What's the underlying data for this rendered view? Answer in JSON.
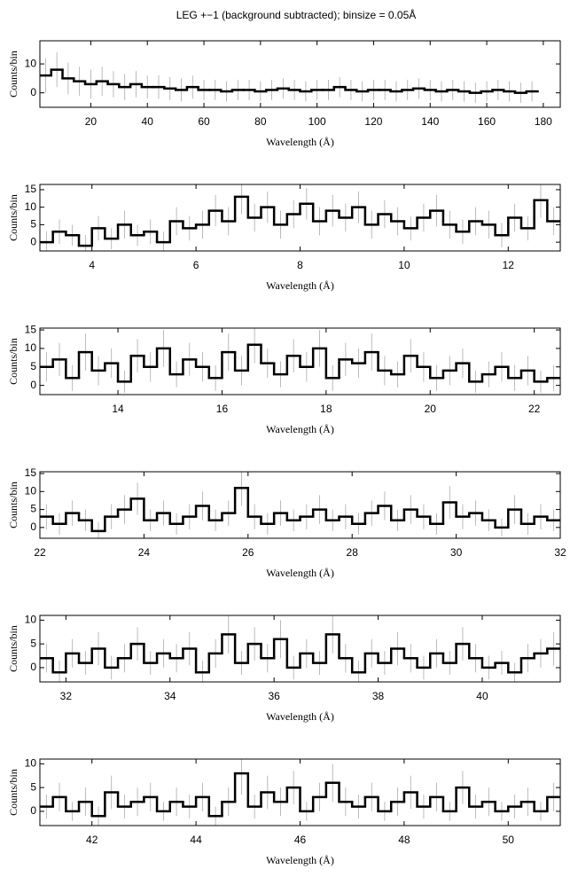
{
  "title": "LEG +−1 (background subtracted); binsize = 0.05Å",
  "chart_data": [
    {
      "type": "histogram",
      "xlabel": "Wavelength (Å)",
      "ylabel": "Counts/bin",
      "color": "#000000",
      "error_color": "#aaaaaa",
      "xlim": [
        2,
        186
      ],
      "ylim": [
        -5,
        18
      ],
      "xticks": [
        20,
        40,
        60,
        80,
        100,
        120,
        140,
        160,
        180
      ],
      "yticks": [
        0,
        10
      ],
      "bins": [
        2,
        6,
        10,
        14,
        18,
        22,
        26,
        30,
        34,
        38,
        42,
        46,
        50,
        54,
        58,
        62,
        66,
        70,
        74,
        78,
        82,
        86,
        90,
        94,
        98,
        102,
        106,
        110,
        114,
        118,
        122,
        126,
        130,
        134,
        138,
        142,
        146,
        150,
        154,
        158,
        162,
        166,
        170,
        174,
        178
      ],
      "values": [
        6,
        8,
        5,
        4,
        3,
        4,
        3,
        2,
        3,
        2,
        2,
        1.5,
        1,
        2,
        1,
        1,
        0.5,
        1,
        1,
        0.5,
        1,
        1.5,
        1,
        0.5,
        1,
        1,
        2,
        1,
        0.5,
        1,
        1,
        0.5,
        1,
        1.5,
        1,
        0.5,
        1,
        0.5,
        0,
        0.5,
        1,
        0.5,
        0,
        0.5
      ],
      "errors": [
        6,
        6,
        5.5,
        5,
        5,
        5,
        4.5,
        4.5,
        4.5,
        4,
        4,
        4,
        4,
        4,
        3.5,
        3.5,
        3.5,
        3.5,
        3.5,
        3.5,
        3.5,
        3.5,
        3.5,
        3.5,
        3.5,
        3.5,
        3.5,
        3.5,
        3.5,
        3.5,
        3.5,
        3.5,
        3.5,
        3.5,
        3.5,
        3.5,
        3.5,
        3.5,
        3.5,
        3.5,
        3.5,
        3.5,
        3.5,
        3.5
      ]
    },
    {
      "type": "histogram",
      "xlabel": "Wavelength (Å)",
      "ylabel": "Counts/bin",
      "color": "#000000",
      "error_color": "#aaaaaa",
      "xlim": [
        3,
        13
      ],
      "ylim": [
        -2.5,
        16.5
      ],
      "xticks": [
        4,
        6,
        8,
        10,
        12
      ],
      "yticks": [
        0,
        5,
        10,
        15
      ],
      "bins": [
        3,
        3.25,
        3.5,
        3.75,
        4,
        4.25,
        4.5,
        4.75,
        5,
        5.25,
        5.5,
        5.75,
        6,
        6.25,
        6.5,
        6.75,
        7,
        7.25,
        7.5,
        7.75,
        8,
        8.25,
        8.5,
        8.75,
        9,
        9.25,
        9.5,
        9.75,
        10,
        10.25,
        10.5,
        10.75,
        11,
        11.25,
        11.5,
        11.75,
        12,
        12.25,
        12.5,
        12.75,
        13
      ],
      "values": [
        0,
        3,
        2,
        -1,
        4,
        1,
        5,
        2,
        3,
        0,
        6,
        4,
        5,
        9,
        6,
        13,
        7,
        10,
        5,
        8,
        11,
        6,
        9,
        7,
        10,
        5,
        8,
        6,
        4,
        7,
        9,
        5,
        3,
        6,
        5,
        2,
        7,
        4,
        12,
        6
      ],
      "errors": [
        3,
        3.5,
        3,
        3,
        3.5,
        3,
        4,
        3,
        3.5,
        3,
        4,
        3.5,
        4,
        4.5,
        4,
        5,
        4,
        4.5,
        4,
        4,
        4.5,
        4,
        4.5,
        4,
        4.5,
        4,
        4,
        4,
        3.5,
        4,
        4.5,
        4,
        3.5,
        4,
        4,
        3.5,
        4,
        3.5,
        5,
        4
      ]
    },
    {
      "type": "histogram",
      "xlabel": "Wavelength (Å)",
      "ylabel": "Counts/bin",
      "color": "#000000",
      "error_color": "#aaaaaa",
      "xlim": [
        12.5,
        22.5
      ],
      "ylim": [
        -2.5,
        15.5
      ],
      "xticks": [
        14,
        16,
        18,
        20,
        22
      ],
      "yticks": [
        0,
        5,
        10,
        15
      ],
      "bins": [
        12.5,
        12.75,
        13,
        13.25,
        13.5,
        13.75,
        14,
        14.25,
        14.5,
        14.75,
        15,
        15.25,
        15.5,
        15.75,
        16,
        16.25,
        16.5,
        16.75,
        17,
        17.25,
        17.5,
        17.75,
        18,
        18.25,
        18.5,
        18.75,
        19,
        19.25,
        19.5,
        19.75,
        20,
        20.25,
        20.5,
        20.75,
        21,
        21.25,
        21.5,
        21.75,
        22,
        22.25,
        22.5
      ],
      "values": [
        5,
        7,
        2,
        9,
        4,
        6,
        1,
        8,
        5,
        10,
        3,
        7,
        5,
        2,
        9,
        4,
        11,
        6,
        3,
        8,
        5,
        10,
        2,
        7,
        6,
        9,
        4,
        3,
        8,
        5,
        2,
        4,
        6,
        1,
        3,
        5,
        2,
        4,
        1,
        2
      ],
      "errors": [
        4,
        4.5,
        3.5,
        5,
        4,
        4,
        3,
        4.5,
        4,
        5,
        3.5,
        4.5,
        4,
        3.5,
        5,
        4,
        5,
        4,
        3.5,
        4.5,
        4,
        5,
        3.5,
        4.5,
        4,
        5,
        4,
        3.5,
        4.5,
        4,
        3.5,
        4,
        4,
        3,
        3.5,
        4,
        3.5,
        4,
        3,
        3.5
      ]
    },
    {
      "type": "histogram",
      "xlabel": "Wavelength (Å)",
      "ylabel": "Counts/bin",
      "color": "#000000",
      "error_color": "#aaaaaa",
      "xlim": [
        22,
        32
      ],
      "ylim": [
        -3,
        15.5
      ],
      "xticks": [
        22,
        24,
        26,
        28,
        30,
        32
      ],
      "yticks": [
        0,
        5,
        10,
        15
      ],
      "bins": [
        22,
        22.25,
        22.5,
        22.75,
        23,
        23.25,
        23.5,
        23.75,
        24,
        24.25,
        24.5,
        24.75,
        25,
        25.25,
        25.5,
        25.75,
        26,
        26.25,
        26.5,
        26.75,
        27,
        27.25,
        27.5,
        27.75,
        28,
        28.25,
        28.5,
        28.75,
        29,
        29.25,
        29.5,
        29.75,
        30,
        30.25,
        30.5,
        30.75,
        31,
        31.25,
        31.5,
        31.75,
        32
      ],
      "values": [
        3,
        1,
        4,
        2,
        -1,
        3,
        5,
        8,
        2,
        4,
        1,
        3,
        6,
        2,
        4,
        11,
        3,
        1,
        4,
        2,
        3,
        5,
        2,
        3,
        1,
        4,
        6,
        2,
        5,
        3,
        1,
        7,
        3,
        4,
        2,
        0,
        5,
        1,
        3,
        2
      ],
      "errors": [
        3.5,
        3,
        3.5,
        3,
        2.5,
        3.5,
        4,
        4.5,
        3,
        3.5,
        3,
        3.5,
        4,
        3,
        3.5,
        5,
        3.5,
        3,
        3.5,
        3,
        3.5,
        4,
        3,
        3.5,
        3,
        3.5,
        4,
        3,
        4,
        3.5,
        3,
        4.5,
        3.5,
        3.5,
        3,
        2.5,
        4,
        3,
        3.5,
        3
      ]
    },
    {
      "type": "histogram",
      "xlabel": "Wavelength (Å)",
      "ylabel": "Counts/bin",
      "color": "#000000",
      "error_color": "#aaaaaa",
      "xlim": [
        31.5,
        41.5
      ],
      "ylim": [
        -3,
        11
      ],
      "xticks": [
        32,
        34,
        36,
        38,
        40
      ],
      "yticks": [
        0,
        5,
        10
      ],
      "bins": [
        31.5,
        31.75,
        32,
        32.25,
        32.5,
        32.75,
        33,
        33.25,
        33.5,
        33.75,
        34,
        34.25,
        34.5,
        34.75,
        35,
        35.25,
        35.5,
        35.75,
        36,
        36.25,
        36.5,
        36.75,
        37,
        37.25,
        37.5,
        37.75,
        38,
        38.25,
        38.5,
        38.75,
        39,
        39.25,
        39.5,
        39.75,
        40,
        40.25,
        40.5,
        40.75,
        41,
        41.25,
        41.5
      ],
      "values": [
        2,
        -1,
        3,
        1,
        4,
        0,
        2,
        5,
        1,
        3,
        2,
        4,
        -1,
        3,
        7,
        1,
        5,
        2,
        6,
        0,
        3,
        1,
        7,
        2,
        -1,
        3,
        1,
        4,
        2,
        0,
        3,
        1,
        5,
        2,
        0,
        1,
        -1,
        2,
        3,
        4
      ],
      "errors": [
        3,
        2.5,
        3,
        2.5,
        3.5,
        2.5,
        3,
        3.5,
        2.5,
        3,
        3,
        3.5,
        2.5,
        3,
        4,
        2.5,
        3.5,
        3,
        4,
        2.5,
        3,
        2.5,
        4,
        3,
        2.5,
        3,
        2.5,
        3.5,
        3,
        2.5,
        3,
        2.5,
        3.5,
        3,
        2.5,
        2.5,
        2,
        3,
        3,
        3.5
      ]
    },
    {
      "type": "histogram",
      "xlabel": "Wavelength (Å)",
      "ylabel": "Counts/bin",
      "color": "#000000",
      "error_color": "#aaaaaa",
      "xlim": [
        41,
        51
      ],
      "ylim": [
        -3,
        11
      ],
      "xticks": [
        42,
        44,
        46,
        48,
        50
      ],
      "yticks": [
        0,
        5,
        10
      ],
      "bins": [
        41,
        41.25,
        41.5,
        41.75,
        42,
        42.25,
        42.5,
        42.75,
        43,
        43.25,
        43.5,
        43.75,
        44,
        44.25,
        44.5,
        44.75,
        45,
        45.25,
        45.5,
        45.75,
        46,
        46.25,
        46.5,
        46.75,
        47,
        47.25,
        47.5,
        47.75,
        48,
        48.25,
        48.5,
        48.75,
        49,
        49.25,
        49.5,
        49.75,
        50,
        50.25,
        50.5,
        50.75,
        51
      ],
      "values": [
        1,
        3,
        0,
        2,
        -1,
        4,
        1,
        2,
        3,
        0,
        2,
        1,
        3,
        -1,
        2,
        8,
        1,
        4,
        2,
        5,
        0,
        3,
        6,
        2,
        1,
        3,
        0,
        2,
        4,
        1,
        3,
        0,
        5,
        1,
        2,
        0,
        1,
        2,
        0,
        3
      ],
      "errors": [
        2.5,
        3,
        2,
        3,
        2,
        3.5,
        2.5,
        3,
        3,
        2,
        3,
        2.5,
        3,
        2,
        3,
        4.5,
        2.5,
        3.5,
        3,
        3.5,
        2,
        3,
        4,
        3,
        2.5,
        3,
        2,
        3,
        3.5,
        2.5,
        3,
        2,
        3.5,
        2.5,
        3,
        2,
        2.5,
        3,
        2,
        3
      ]
    }
  ]
}
